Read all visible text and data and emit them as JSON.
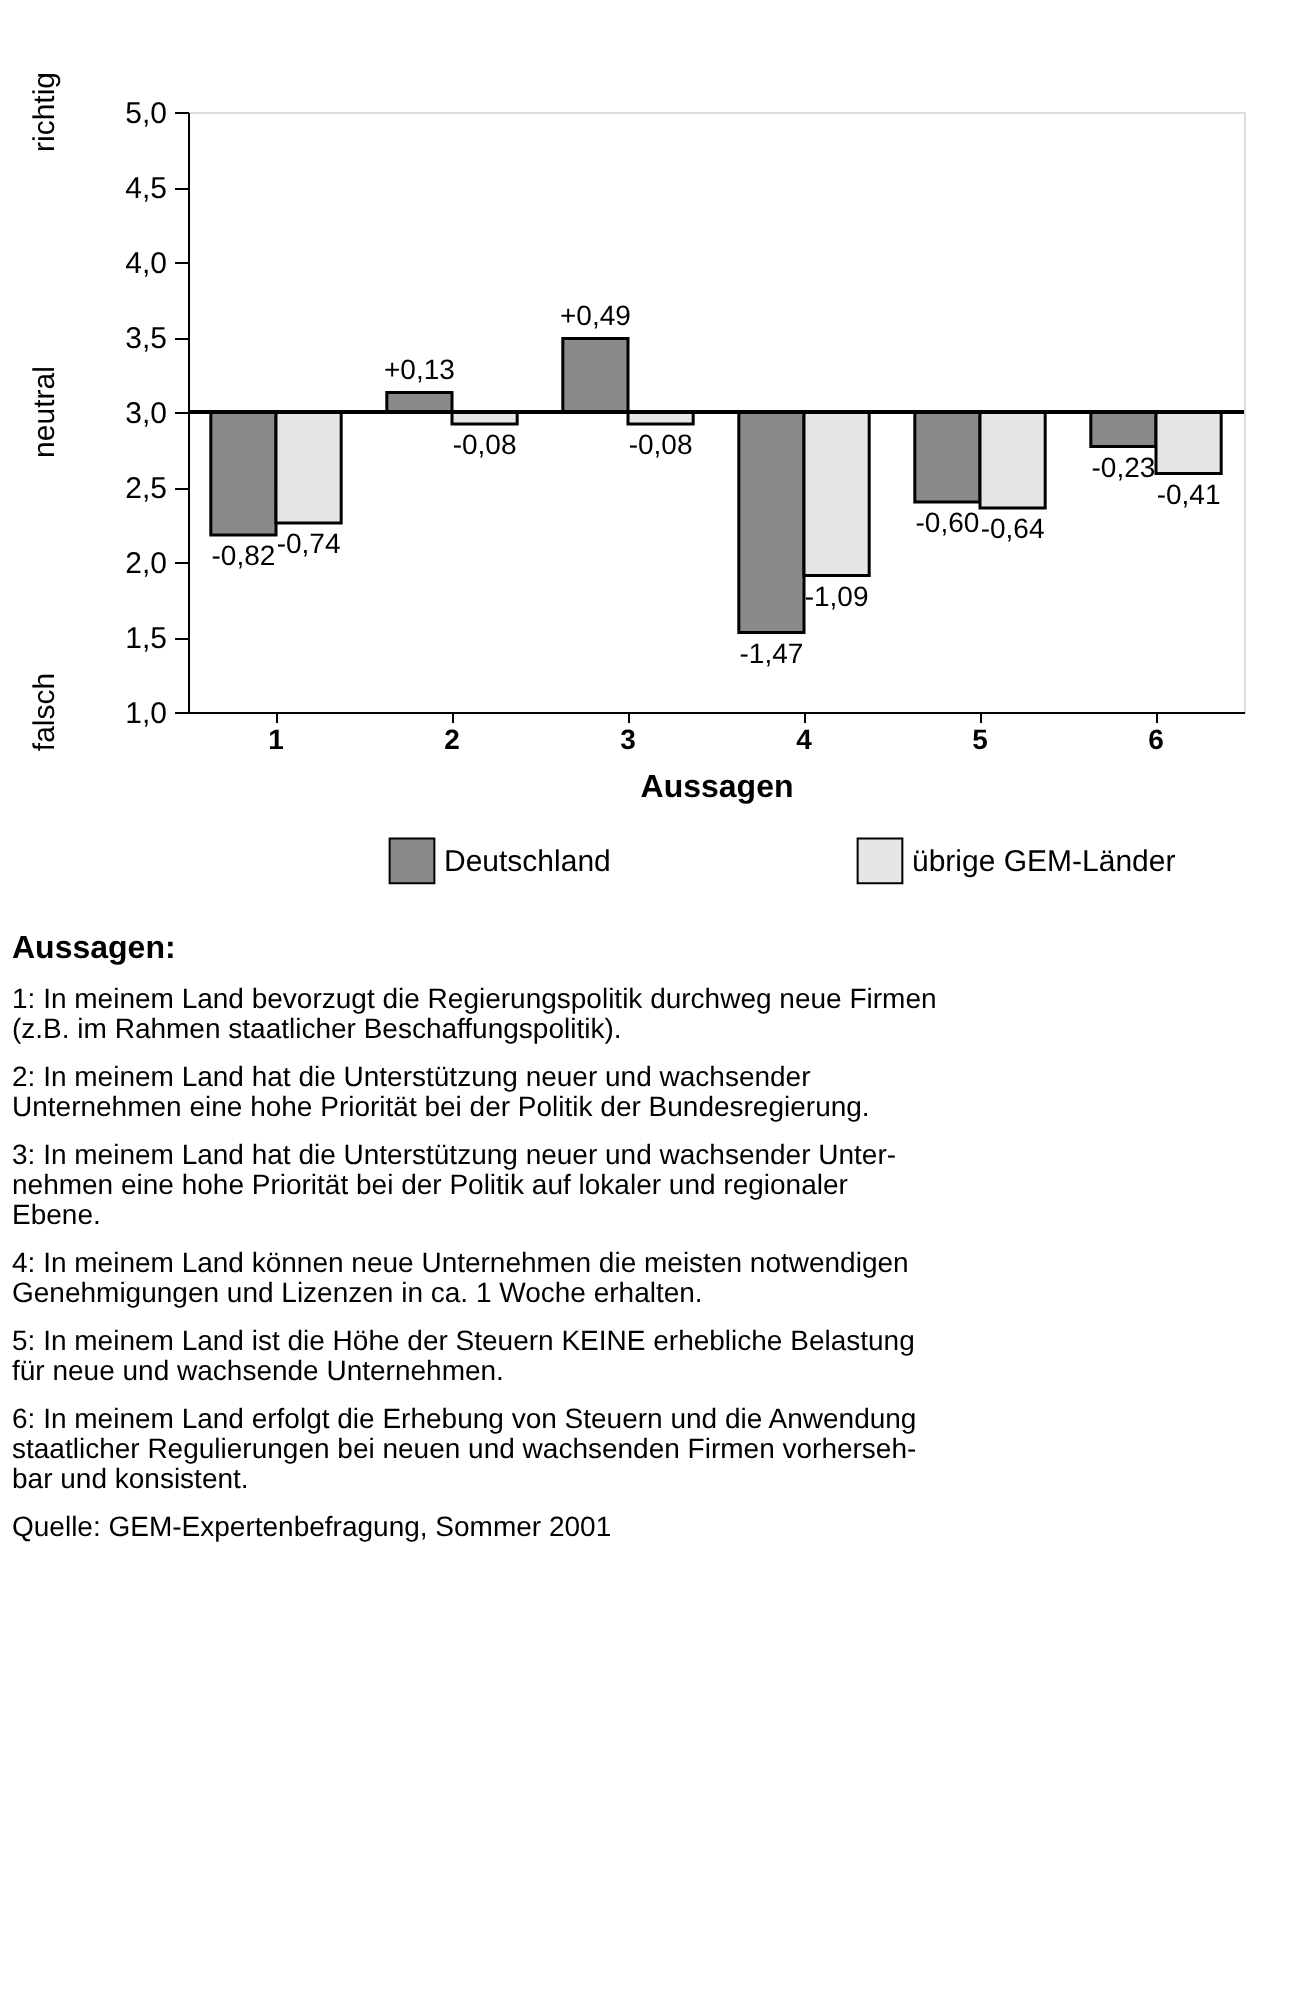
{
  "chart_data": {
    "type": "bar",
    "xlabel": "Aussagen",
    "categories": [
      "1",
      "2",
      "3",
      "4",
      "5",
      "6"
    ],
    "series": [
      {
        "name": "Deutschland",
        "color": "#8a8a8a",
        "base": [
          3,
          3,
          3,
          3,
          3,
          3
        ],
        "values": [
          -0.82,
          0.13,
          0.49,
          -1.47,
          -0.6,
          -0.23
        ],
        "value_labels": [
          "-0,82",
          "+0,13",
          "+0,49",
          "-1,47",
          "-0,60",
          "-0,23"
        ]
      },
      {
        "name": "übrige GEM-Länder",
        "color": "#e6e6e6",
        "base": [
          3,
          3,
          3,
          3,
          3,
          3
        ],
        "values": [
          -0.74,
          -0.08,
          -0.08,
          -1.09,
          -0.64,
          -0.41
        ],
        "value_labels": [
          "-0,74",
          "-0,08",
          "-0,08",
          "-1,09",
          "-0,64",
          "-0,41"
        ]
      }
    ],
    "ylim": [
      1,
      5
    ],
    "yticks": [
      {
        "value": 1,
        "label": "1,0"
      },
      {
        "value": 1.5,
        "label": "1,5"
      },
      {
        "value": 2,
        "label": "2,0"
      },
      {
        "value": 2.5,
        "label": "2,5"
      },
      {
        "value": 3,
        "label": "3,0"
      },
      {
        "value": 3.5,
        "label": "3,5"
      },
      {
        "value": 4,
        "label": "4,0"
      },
      {
        "value": 4.5,
        "label": "4,5"
      },
      {
        "value": 5,
        "label": "5,0"
      }
    ],
    "ref_lines": [
      {
        "axis": "y",
        "value": 3,
        "color": "#000000"
      }
    ],
    "grid": false,
    "legend": "bottom",
    "annotations": [
      "richtig",
      "neutral",
      "falsch",
      "Aussagen:",
      "1: In meinem Land bevorzugt die Regierungspolitik durchweg neue Firmen\n(z.B. im Rahmen staatlicher Beschaffungspolitik).",
      "2: In meinem Land hat die Unterstützung neuer und wachsender\nUnternehmen eine hohe Priorität bei der Politik der Bundesregierung.",
      "3: In meinem Land hat die Unterstützung neuer und wachsender Unter-\nnehmen eine hohe Priorität bei der Politik auf lokaler und regionaler\nEbene.",
      "4: In meinem Land können neue Unternehmen die meisten notwendigen\nGenehmigungen und Lizenzen in ca. 1 Woche erhalten.",
      "5: In meinem Land ist die Höhe der Steuern KEINE erhebliche Belastung\nfür neue und wachsende Unternehmen.",
      "6: In meinem Land erfolgt die Erhebung von Steuern und die Anwendung\nstaatlicher Regulierungen bei neuen und wachsenden Firmen vorherseh-\nbar und konsistent.",
      "Quelle: GEM-Expertenbefragung, Sommer 2001"
    ]
  }
}
